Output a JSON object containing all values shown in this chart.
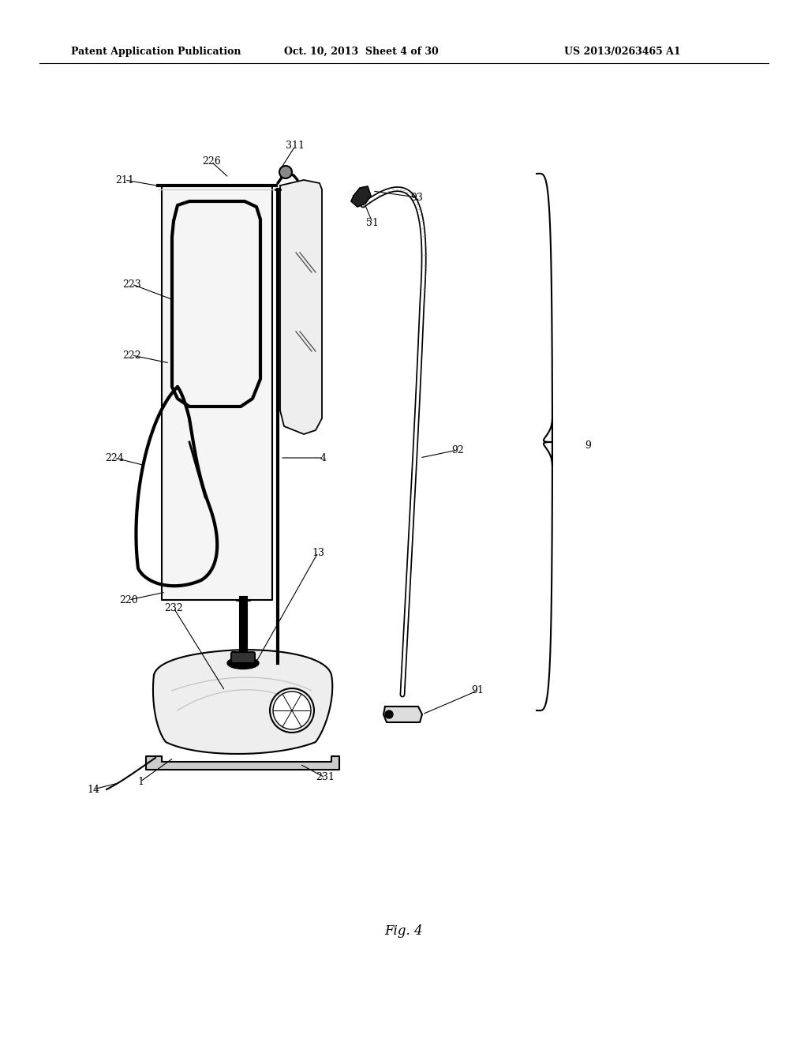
{
  "bg_color": "#ffffff",
  "header_text": "Patent Application Publication",
  "header_date": "Oct. 10, 2013  Sheet 4 of 30",
  "header_patent": "US 2013/0263465 A1",
  "fig_label": "Fig. 4"
}
